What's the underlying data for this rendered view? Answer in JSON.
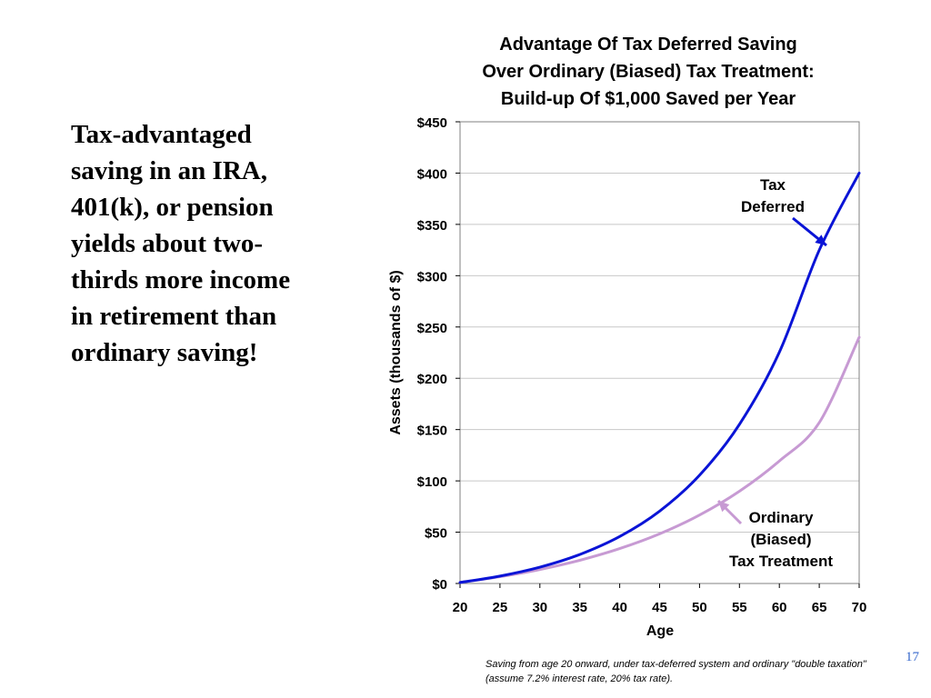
{
  "slide": {
    "text": "Tax-advantaged saving in an IRA, 401(k), or pension yields about two-thirds more income in retirement than ordinary saving!",
    "page_number": "17",
    "footnote": "Saving from age 20 onward, under tax-deferred system and  ordinary \"double taxation\" (assume 7.2% interest rate, 20% tax rate)."
  },
  "colors": {
    "tax_deferred": "#0a14d6",
    "ordinary": "#c79ad3",
    "grid": "#c8c8c8",
    "axis": "#000000"
  },
  "chart_data": {
    "type": "line",
    "title_lines": [
      "Advantage Of Tax Deferred Saving",
      "Over Ordinary (Biased) Tax Treatment:",
      "Build-up Of $1,000 Saved per Year"
    ],
    "xlabel": "Age",
    "ylabel": "Assets (thousands of $)",
    "xlim": [
      20,
      70
    ],
    "ylim": [
      0,
      450
    ],
    "x_ticks": [
      "20",
      "25",
      "30",
      "35",
      "40",
      "45",
      "50",
      "55",
      "60",
      "65",
      "70"
    ],
    "x_tick_values": [
      20,
      25,
      30,
      35,
      40,
      45,
      50,
      55,
      60,
      65,
      70
    ],
    "y_ticks": [
      "$0",
      "$50",
      "$100",
      "$150",
      "$200",
      "$250",
      "$300",
      "$350",
      "$400",
      "$450"
    ],
    "y_tick_values": [
      0,
      50,
      100,
      150,
      200,
      250,
      300,
      350,
      400,
      450
    ],
    "grid": "horizontal",
    "x": [
      20,
      25,
      30,
      35,
      40,
      45,
      50,
      55,
      60,
      65,
      70
    ],
    "series": [
      {
        "name": "Tax Deferred",
        "label_lines": [
          "Tax",
          "Deferred"
        ],
        "values": [
          1.0,
          7.2,
          15.9,
          28.3,
          45.8,
          70.5,
          105.5,
          155.1,
          225.4,
          324.9,
          400.0
        ]
      },
      {
        "name": "Ordinary (Biased) Tax Treatment",
        "label_lines": [
          "Ordinary",
          "(Biased)",
          "Tax Treatment"
        ],
        "values": [
          1.0,
          6.6,
          13.6,
          22.6,
          34.0,
          48.4,
          66.7,
          89.9,
          119.4,
          156.8,
          240.0
        ]
      }
    ]
  }
}
